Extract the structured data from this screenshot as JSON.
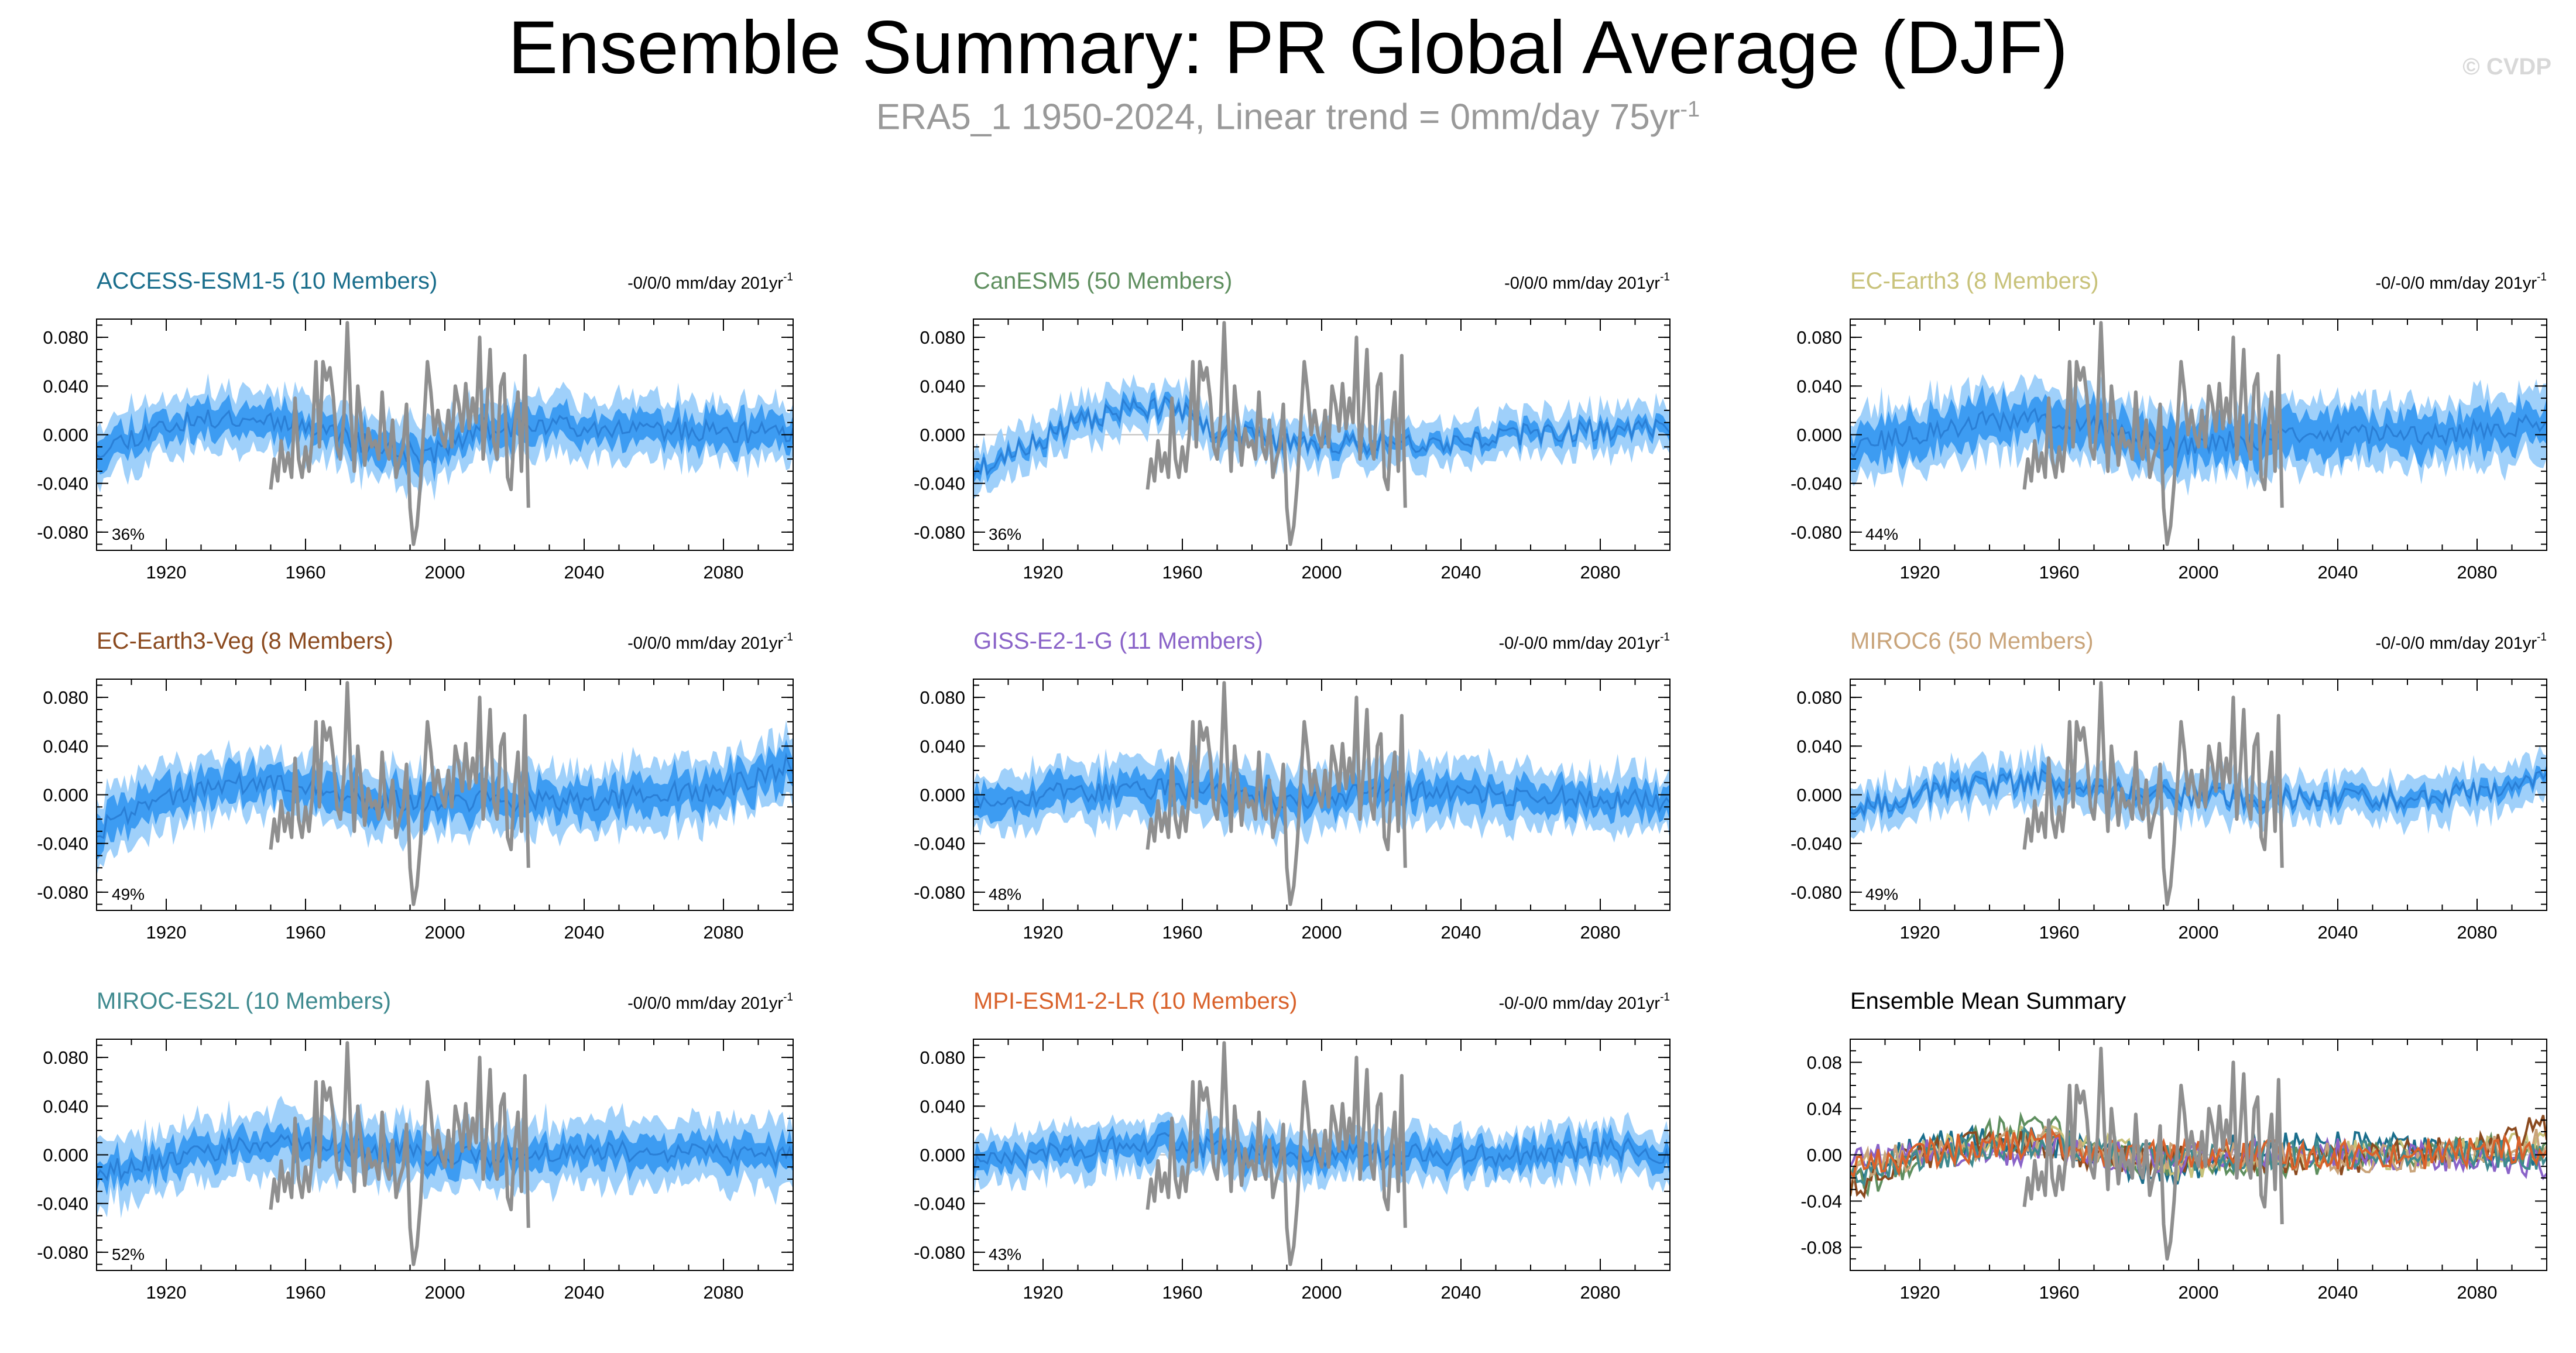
{
  "title": "Ensemble Summary: PR Global Average (DJF)",
  "subtitle_main": "ERA5_1 1950-2024, Linear trend = 0mm/day 75yr",
  "subtitle_sup": "-1",
  "watermark": "© CVDP",
  "colors": {
    "band_outer": "#9fd0fa",
    "band_inner": "#3d9cf2",
    "mean_line": "#2a7fd6",
    "obs_line": "#8f8f8f",
    "axis": "#000000"
  },
  "chart_data": [
    {
      "type": "area",
      "title": "ACCESS-ESM1-5 (10 Members)",
      "title_color": "#1a6e8c",
      "trend_label": "-0/0/0 mm/day 201yr",
      "trend_sup": "-1",
      "percent_label": "36%",
      "x_range": [
        1900,
        2100
      ],
      "ylim": [
        -0.095,
        0.095
      ],
      "yticks": [
        -0.08,
        -0.04,
        0.0,
        0.04,
        0.08
      ],
      "ytick_labels": [
        "-0.080",
        "-0.040",
        "0.000",
        "0.040",
        "0.080"
      ],
      "xticks": [
        1920,
        1960,
        2000,
        2040,
        2080
      ],
      "xtick_labels": [
        "1920",
        "1960",
        "2000",
        "2040",
        "2080"
      ],
      "ensemble_mean": [
        [
          1900,
          -0.012
        ],
        [
          1920,
          0.008
        ],
        [
          1940,
          0.015
        ],
        [
          1960,
          0.01
        ],
        [
          1980,
          -0.01
        ],
        [
          1995,
          -0.018
        ],
        [
          2010,
          0.005
        ],
        [
          2040,
          0.008
        ],
        [
          2070,
          0.003
        ],
        [
          2100,
          0.0
        ]
      ],
      "inner_halfwidth": 0.012,
      "outer_halfwidth": 0.024,
      "seed": 11
    },
    {
      "type": "area",
      "title": "CanESM5 (50 Members)",
      "title_color": "#5f8f5f",
      "trend_label": "-0/0/0 mm/day 201yr",
      "trend_sup": "-1",
      "percent_label": "36%",
      "x_range": [
        1900,
        2100
      ],
      "ylim": [
        -0.095,
        0.095
      ],
      "yticks": [
        -0.08,
        -0.04,
        0.0,
        0.04,
        0.08
      ],
      "ytick_labels": [
        "-0.080",
        "-0.040",
        "0.000",
        "0.040",
        "0.080"
      ],
      "xticks": [
        1920,
        1960,
        2000,
        2040,
        2080
      ],
      "xtick_labels": [
        "1920",
        "1960",
        "2000",
        "2040",
        "2080"
      ],
      "ensemble_mean": [
        [
          1900,
          -0.03
        ],
        [
          1915,
          -0.01
        ],
        [
          1930,
          0.01
        ],
        [
          1945,
          0.022
        ],
        [
          1958,
          0.022
        ],
        [
          1968,
          0.005
        ],
        [
          1985,
          -0.005
        ],
        [
          2000,
          -0.008
        ],
        [
          2040,
          -0.005
        ],
        [
          2070,
          0.003
        ],
        [
          2100,
          0.005
        ]
      ],
      "inner_halfwidth": 0.006,
      "outer_halfwidth": 0.018,
      "seed": 23
    },
    {
      "type": "area",
      "title": "EC-Earth3 (8 Members)",
      "title_color": "#c8c27a",
      "trend_label": "-0/-0/0 mm/day 201yr",
      "trend_sup": "-1",
      "percent_label": "44%",
      "x_range": [
        1900,
        2100
      ],
      "ylim": [
        -0.095,
        0.095
      ],
      "yticks": [
        -0.08,
        -0.04,
        0.0,
        0.04,
        0.08
      ],
      "ytick_labels": [
        "-0.080",
        "-0.040",
        "0.000",
        "0.040",
        "0.080"
      ],
      "xticks": [
        1920,
        1960,
        2000,
        2040,
        2080
      ],
      "xtick_labels": [
        "1920",
        "1960",
        "2000",
        "2040",
        "2080"
      ],
      "ensemble_mean": [
        [
          1900,
          -0.01
        ],
        [
          1920,
          0.0
        ],
        [
          1940,
          0.012
        ],
        [
          1960,
          0.012
        ],
        [
          1980,
          0.0
        ],
        [
          1995,
          -0.01
        ],
        [
          2030,
          0.0
        ],
        [
          2070,
          0.0
        ],
        [
          2100,
          0.01
        ]
      ],
      "inner_halfwidth": 0.016,
      "outer_halfwidth": 0.028,
      "seed": 37
    },
    {
      "type": "area",
      "title": "EC-Earth3-Veg (8 Members)",
      "title_color": "#8b4a1f",
      "trend_label": "-0/0/0 mm/day 201yr",
      "trend_sup": "-1",
      "percent_label": "49%",
      "x_range": [
        1900,
        2100
      ],
      "ylim": [
        -0.095,
        0.095
      ],
      "yticks": [
        -0.08,
        -0.04,
        0.0,
        0.04,
        0.08
      ],
      "ytick_labels": [
        "-0.080",
        "-0.040",
        "0.000",
        "0.040",
        "0.080"
      ],
      "xticks": [
        1920,
        1960,
        2000,
        2040,
        2080
      ],
      "xtick_labels": [
        "1920",
        "1960",
        "2000",
        "2040",
        "2080"
      ],
      "ensemble_mean": [
        [
          1900,
          -0.03
        ],
        [
          1915,
          -0.005
        ],
        [
          1940,
          0.01
        ],
        [
          1960,
          0.005
        ],
        [
          1980,
          -0.005
        ],
        [
          2000,
          -0.005
        ],
        [
          2040,
          -0.005
        ],
        [
          2080,
          0.005
        ],
        [
          2100,
          0.025
        ]
      ],
      "inner_halfwidth": 0.014,
      "outer_halfwidth": 0.026,
      "seed": 41
    },
    {
      "type": "area",
      "title": "GISS-E2-1-G (11 Members)",
      "title_color": "#8a63c8",
      "trend_label": "-0/-0/0 mm/day 201yr",
      "trend_sup": "-1",
      "percent_label": "48%",
      "x_range": [
        1900,
        2100
      ],
      "ylim": [
        -0.095,
        0.095
      ],
      "yticks": [
        -0.08,
        -0.04,
        0.0,
        0.04,
        0.08
      ],
      "ytick_labels": [
        "-0.080",
        "-0.040",
        "0.000",
        "0.040",
        "0.080"
      ],
      "xticks": [
        1920,
        1960,
        2000,
        2040,
        2080
      ],
      "xtick_labels": [
        "1920",
        "1960",
        "2000",
        "2040",
        "2080"
      ],
      "ensemble_mean": [
        [
          1900,
          -0.005
        ],
        [
          1930,
          0.002
        ],
        [
          1960,
          0.005
        ],
        [
          1990,
          -0.005
        ],
        [
          2020,
          0.003
        ],
        [
          2050,
          0.0
        ],
        [
          2080,
          -0.002
        ],
        [
          2100,
          -0.008
        ]
      ],
      "inner_halfwidth": 0.012,
      "outer_halfwidth": 0.024,
      "seed": 53
    },
    {
      "type": "area",
      "title": "MIROC6 (50 Members)",
      "title_color": "#c9a47a",
      "trend_label": "-0/-0/0 mm/day 201yr",
      "trend_sup": "-1",
      "percent_label": "49%",
      "x_range": [
        1900,
        2100
      ],
      "ylim": [
        -0.095,
        0.095
      ],
      "yticks": [
        -0.08,
        -0.04,
        0.0,
        0.04,
        0.08
      ],
      "ytick_labels": [
        "-0.080",
        "-0.040",
        "0.000",
        "0.040",
        "0.080"
      ],
      "xticks": [
        1920,
        1960,
        2000,
        2040,
        2080
      ],
      "xtick_labels": [
        "1920",
        "1960",
        "2000",
        "2040",
        "2080"
      ],
      "ensemble_mean": [
        [
          1900,
          -0.01
        ],
        [
          1930,
          0.005
        ],
        [
          1955,
          0.012
        ],
        [
          1980,
          0.0
        ],
        [
          2020,
          -0.002
        ],
        [
          2060,
          -0.003
        ],
        [
          2090,
          0.005
        ],
        [
          2100,
          0.012
        ]
      ],
      "inner_halfwidth": 0.006,
      "outer_halfwidth": 0.018,
      "seed": 67
    },
    {
      "type": "area",
      "title": "MIROC-ES2L (10 Members)",
      "title_color": "#3f8a8f",
      "trend_label": "-0/0/0 mm/day 201yr",
      "trend_sup": "-1",
      "percent_label": "52%",
      "x_range": [
        1900,
        2100
      ],
      "ylim": [
        -0.095,
        0.095
      ],
      "yticks": [
        -0.08,
        -0.04,
        0.0,
        0.04,
        0.08
      ],
      "ytick_labels": [
        "-0.080",
        "-0.040",
        "0.000",
        "0.040",
        "0.080"
      ],
      "xticks": [
        1920,
        1960,
        2000,
        2040,
        2080
      ],
      "xtick_labels": [
        "1920",
        "1960",
        "2000",
        "2040",
        "2080"
      ],
      "ensemble_mean": [
        [
          1900,
          -0.015
        ],
        [
          1925,
          0.0
        ],
        [
          1950,
          0.01
        ],
        [
          1975,
          0.005
        ],
        [
          2000,
          -0.002
        ],
        [
          2040,
          0.002
        ],
        [
          2070,
          0.003
        ],
        [
          2100,
          -0.002
        ]
      ],
      "inner_halfwidth": 0.012,
      "outer_halfwidth": 0.026,
      "seed": 79
    },
    {
      "type": "area",
      "title": "MPI-ESM1-2-LR (10 Members)",
      "title_color": "#d9622b",
      "trend_label": "-0/-0/0 mm/day 201yr",
      "trend_sup": "-1",
      "percent_label": "43%",
      "x_range": [
        1900,
        2100
      ],
      "ylim": [
        -0.095,
        0.095
      ],
      "yticks": [
        -0.08,
        -0.04,
        0.0,
        0.04,
        0.08
      ],
      "ytick_labels": [
        "-0.080",
        "-0.040",
        "0.000",
        "0.040",
        "0.080"
      ],
      "xticks": [
        1920,
        1960,
        2000,
        2040,
        2080
      ],
      "xtick_labels": [
        "1920",
        "1960",
        "2000",
        "2040",
        "2080"
      ],
      "ensemble_mean": [
        [
          1900,
          -0.01
        ],
        [
          1930,
          0.005
        ],
        [
          1955,
          0.01
        ],
        [
          1980,
          0.0
        ],
        [
          2020,
          0.0
        ],
        [
          2060,
          0.0
        ],
        [
          2090,
          0.005
        ],
        [
          2100,
          0.0
        ]
      ],
      "inner_halfwidth": 0.01,
      "outer_halfwidth": 0.02,
      "seed": 89
    },
    {
      "type": "line",
      "title": "Ensemble Mean Summary",
      "title_color": "#000000",
      "x_range": [
        1900,
        2100
      ],
      "ylim": [
        -0.1,
        0.1
      ],
      "yticks": [
        -0.08,
        -0.04,
        0.0,
        0.04,
        0.08
      ],
      "ytick_labels": [
        "-0.08",
        "-0.04",
        "0.00",
        "0.04",
        "0.08"
      ],
      "xticks": [
        1920,
        1960,
        2000,
        2040,
        2080
      ],
      "xtick_labels": [
        "1920",
        "1960",
        "2000",
        "2040",
        "2080"
      ],
      "series": [
        {
          "name": "ACCESS-ESM1-5",
          "color": "#1a6e8c"
        },
        {
          "name": "CanESM5",
          "color": "#5f8f5f"
        },
        {
          "name": "EC-Earth3",
          "color": "#c8c27a"
        },
        {
          "name": "EC-Earth3-Veg",
          "color": "#8b4a1f"
        },
        {
          "name": "GISS-E2-1-G",
          "color": "#8a63c8"
        },
        {
          "name": "MIROC6",
          "color": "#c9a47a"
        },
        {
          "name": "MIROC-ES2L",
          "color": "#3f8a8f"
        },
        {
          "name": "MPI-ESM1-2-LR",
          "color": "#d9622b"
        }
      ]
    }
  ],
  "observations": {
    "name": "ERA5_1",
    "years": [
      1950,
      1951,
      1952,
      1953,
      1954,
      1955,
      1956,
      1957,
      1958,
      1959,
      1960,
      1961,
      1962,
      1963,
      1964,
      1965,
      1966,
      1967,
      1968,
      1969,
      1970,
      1971,
      1972,
      1973,
      1974,
      1975,
      1976,
      1977,
      1978,
      1979,
      1980,
      1981,
      1982,
      1983,
      1984,
      1985,
      1986,
      1987,
      1988,
      1989,
      1990,
      1991,
      1992,
      1993,
      1994,
      1995,
      1996,
      1997,
      1998,
      1999,
      2000,
      2001,
      2002,
      2003,
      2004,
      2005,
      2006,
      2007,
      2008,
      2009,
      2010,
      2011,
      2012,
      2013,
      2014,
      2015,
      2016,
      2017,
      2018,
      2019,
      2020,
      2021,
      2022,
      2023,
      2024
    ],
    "values": [
      -0.045,
      -0.02,
      -0.038,
      -0.005,
      -0.03,
      -0.015,
      -0.035,
      0.03,
      -0.02,
      -0.035,
      -0.01,
      -0.03,
      0.0,
      0.06,
      -0.01,
      0.06,
      0.045,
      0.055,
      0.03,
      -0.01,
      -0.02,
      0.015,
      0.092,
      0.02,
      -0.03,
      0.04,
      0.01,
      -0.025,
      0.005,
      -0.01,
      -0.005,
      -0.02,
      0.035,
      -0.01,
      -0.02,
      0.012,
      -0.035,
      -0.02,
      -0.01,
      0.025,
      -0.06,
      -0.09,
      -0.075,
      -0.04,
      0.01,
      0.06,
      0.035,
      0.0,
      0.02,
      0.0,
      -0.01,
      0.02,
      -0.01,
      0.04,
      0.025,
      0.003,
      0.042,
      0.005,
      0.03,
      0.01,
      0.08,
      -0.02,
      0.02,
      0.07,
      -0.005,
      -0.02,
      0.04,
      0.05,
      -0.035,
      -0.045,
      0.005,
      0.035,
      -0.03,
      0.065,
      -0.06
    ]
  }
}
